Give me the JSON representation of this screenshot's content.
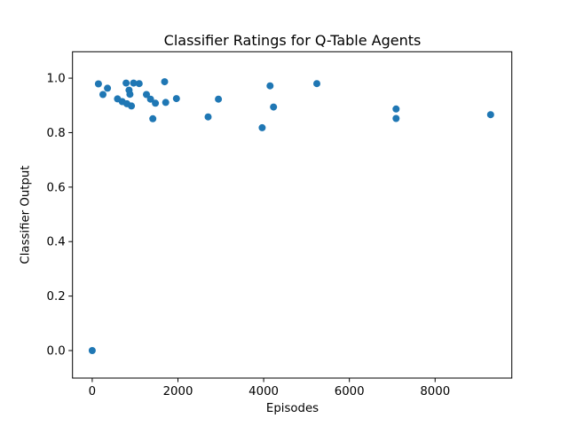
{
  "chart_data": {
    "type": "scatter",
    "title": "Classifier Ratings for Q-Table Agents",
    "xlabel": "Episodes",
    "ylabel": "Classifier Output",
    "xlim": [
      -460,
      9790
    ],
    "ylim": [
      -0.101,
      1.097
    ],
    "xticks": [
      {
        "value": 0,
        "label": "0"
      },
      {
        "value": 2000,
        "label": "2000"
      },
      {
        "value": 4000,
        "label": "4000"
      },
      {
        "value": 6000,
        "label": "6000"
      },
      {
        "value": 8000,
        "label": "8000"
      }
    ],
    "yticks": [
      {
        "value": 0.0,
        "label": "0.0"
      },
      {
        "value": 0.2,
        "label": "0.2"
      },
      {
        "value": 0.4,
        "label": "0.4"
      },
      {
        "value": 0.6,
        "label": "0.6"
      },
      {
        "value": 0.8,
        "label": "0.8"
      },
      {
        "value": 1.0,
        "label": "1.0"
      }
    ],
    "grid": false,
    "legend": null,
    "marker": {
      "shape": "circle",
      "color": "#1f77b4",
      "radius_px": 4
    },
    "axis_color": "#000000",
    "background_color": "#ffffff",
    "points": [
      [
        0,
        0.0
      ],
      [
        145,
        0.979
      ],
      [
        250,
        0.94
      ],
      [
        355,
        0.963
      ],
      [
        590,
        0.924
      ],
      [
        700,
        0.914
      ],
      [
        790,
        0.982
      ],
      [
        810,
        0.906
      ],
      [
        860,
        0.956
      ],
      [
        880,
        0.941
      ],
      [
        915,
        0.898
      ],
      [
        965,
        0.982
      ],
      [
        1095,
        0.98
      ],
      [
        1265,
        0.94
      ],
      [
        1360,
        0.923
      ],
      [
        1415,
        0.851
      ],
      [
        1475,
        0.908
      ],
      [
        1690,
        0.987
      ],
      [
        1715,
        0.911
      ],
      [
        1965,
        0.925
      ],
      [
        2705,
        0.858
      ],
      [
        2945,
        0.923
      ],
      [
        3965,
        0.818
      ],
      [
        4150,
        0.972
      ],
      [
        4230,
        0.894
      ],
      [
        5240,
        0.98
      ],
      [
        7090,
        0.887
      ],
      [
        7090,
        0.852
      ],
      [
        9295,
        0.866
      ]
    ]
  }
}
